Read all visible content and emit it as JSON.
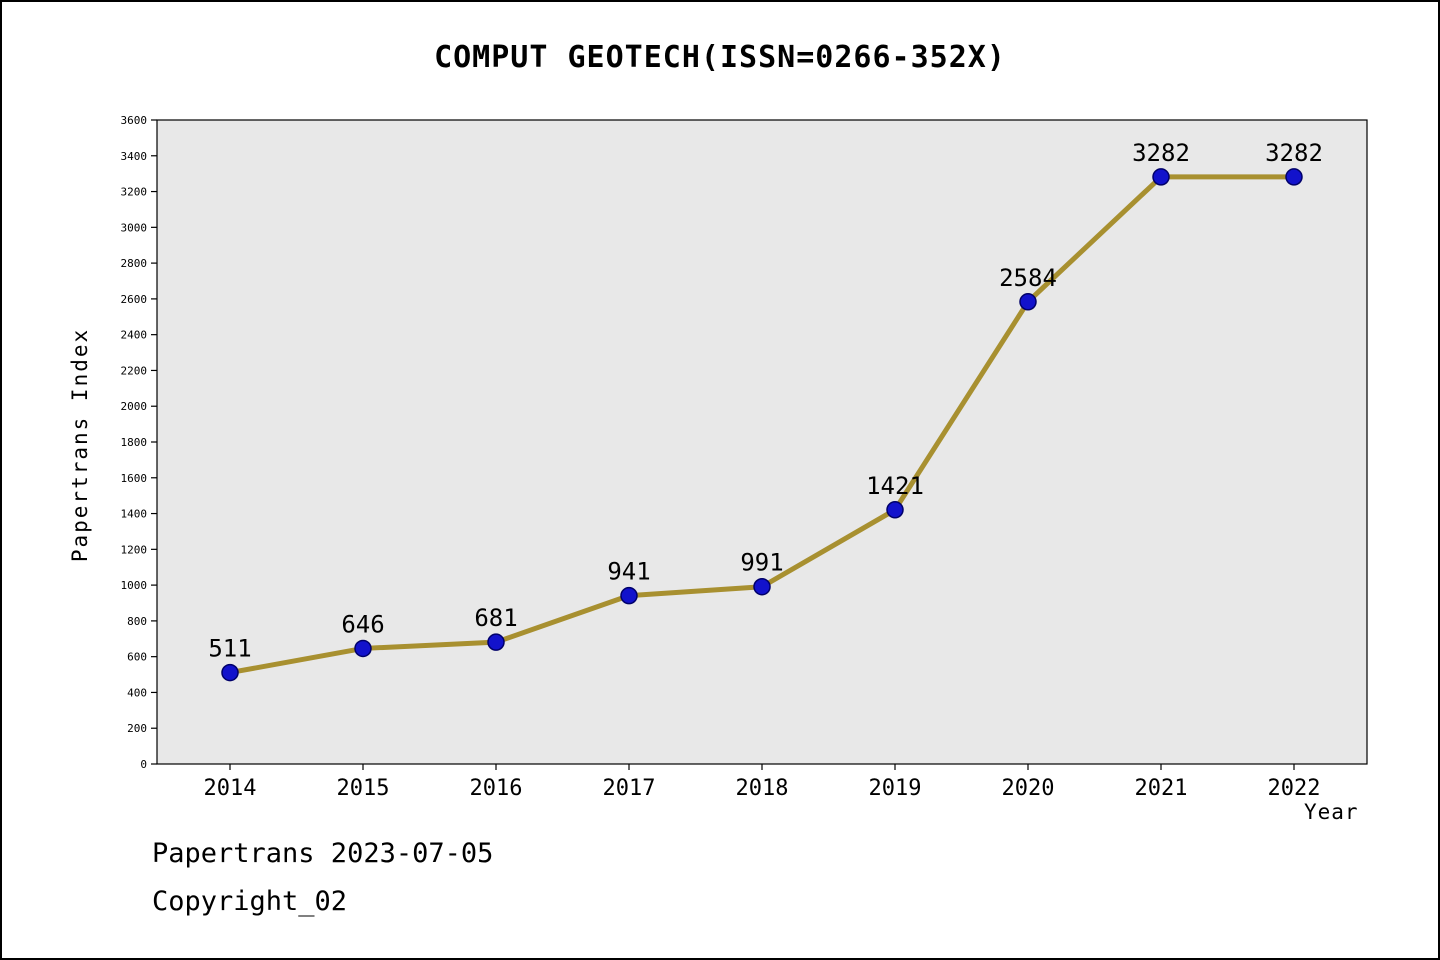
{
  "title": "COMPUT GEOTECH(ISSN=0266-352X)",
  "footer": {
    "line1": "Papertrans 2023-07-05",
    "line2": "Copyright_02"
  },
  "chart_data": {
    "type": "line",
    "title": "COMPUT GEOTECH(ISSN=0266-352X)",
    "categories": [
      "2014",
      "2015",
      "2016",
      "2017",
      "2018",
      "2019",
      "2020",
      "2021",
      "2022"
    ],
    "values": [
      511,
      646,
      681,
      941,
      991,
      1421,
      2584,
      3282,
      3282
    ],
    "xlabel": "Year",
    "ylabel": "Papertrans Index",
    "ylim": [
      0,
      3600
    ],
    "ytick_step": 200,
    "grid": false,
    "legend": "none",
    "colors": {
      "line": "#a89030",
      "marker_fill": "#1212cc",
      "marker_edge": "#00006a",
      "plot_bg": "#e8e8e8",
      "axis": "#000000"
    }
  }
}
